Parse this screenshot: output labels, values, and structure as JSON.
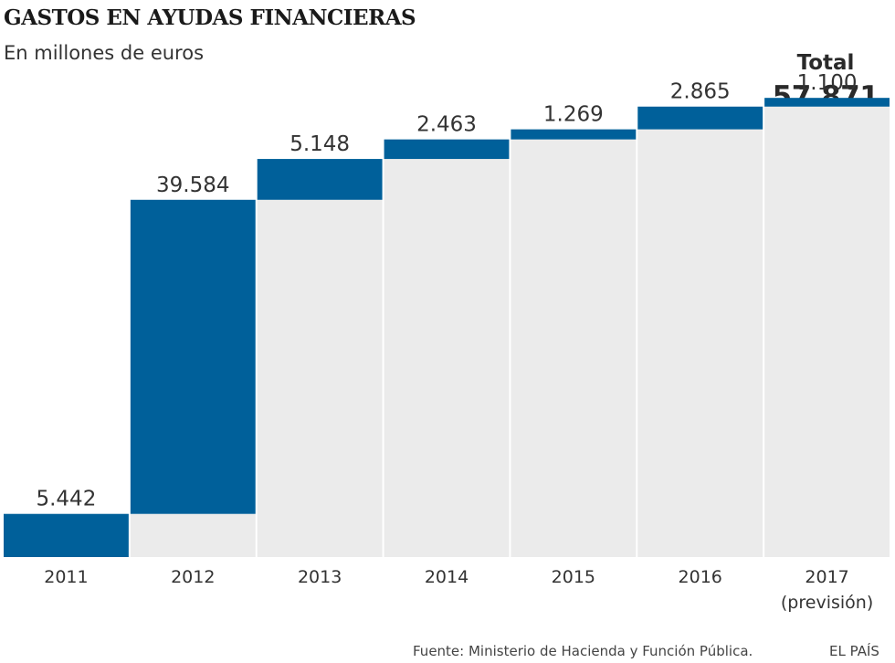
{
  "header": {
    "title": "GASTOS EN AYUDAS FINANCIERAS",
    "subtitle": "En millones de euros"
  },
  "total": {
    "label": "Total",
    "value_text": "57.871"
  },
  "footer": {
    "source": "Fuente: Ministerio de Hacienda y Función Pública.",
    "brand": "EL PAÍS"
  },
  "colors": {
    "increment": "#00609a",
    "cumulative": "#ebebeb"
  },
  "chart_data": {
    "type": "bar",
    "subtype": "waterfall",
    "title": "GASTOS EN AYUDAS FINANCIERAS",
    "subtitle": "En millones de euros",
    "categories": [
      "2011",
      "2012",
      "2013",
      "2014",
      "2015",
      "2016",
      "2017"
    ],
    "category_sublabels": [
      "",
      "",
      "",
      "",
      "",
      "",
      "(previsión)"
    ],
    "values": [
      5442,
      39584,
      5148,
      2463,
      1269,
      2865,
      1100
    ],
    "value_labels": [
      "5.442",
      "39.584",
      "5.148",
      "2.463",
      "1.269",
      "2.865",
      "1.100"
    ],
    "total": 57871,
    "ylim": [
      0,
      61000
    ],
    "grid": false,
    "legend": "none"
  }
}
